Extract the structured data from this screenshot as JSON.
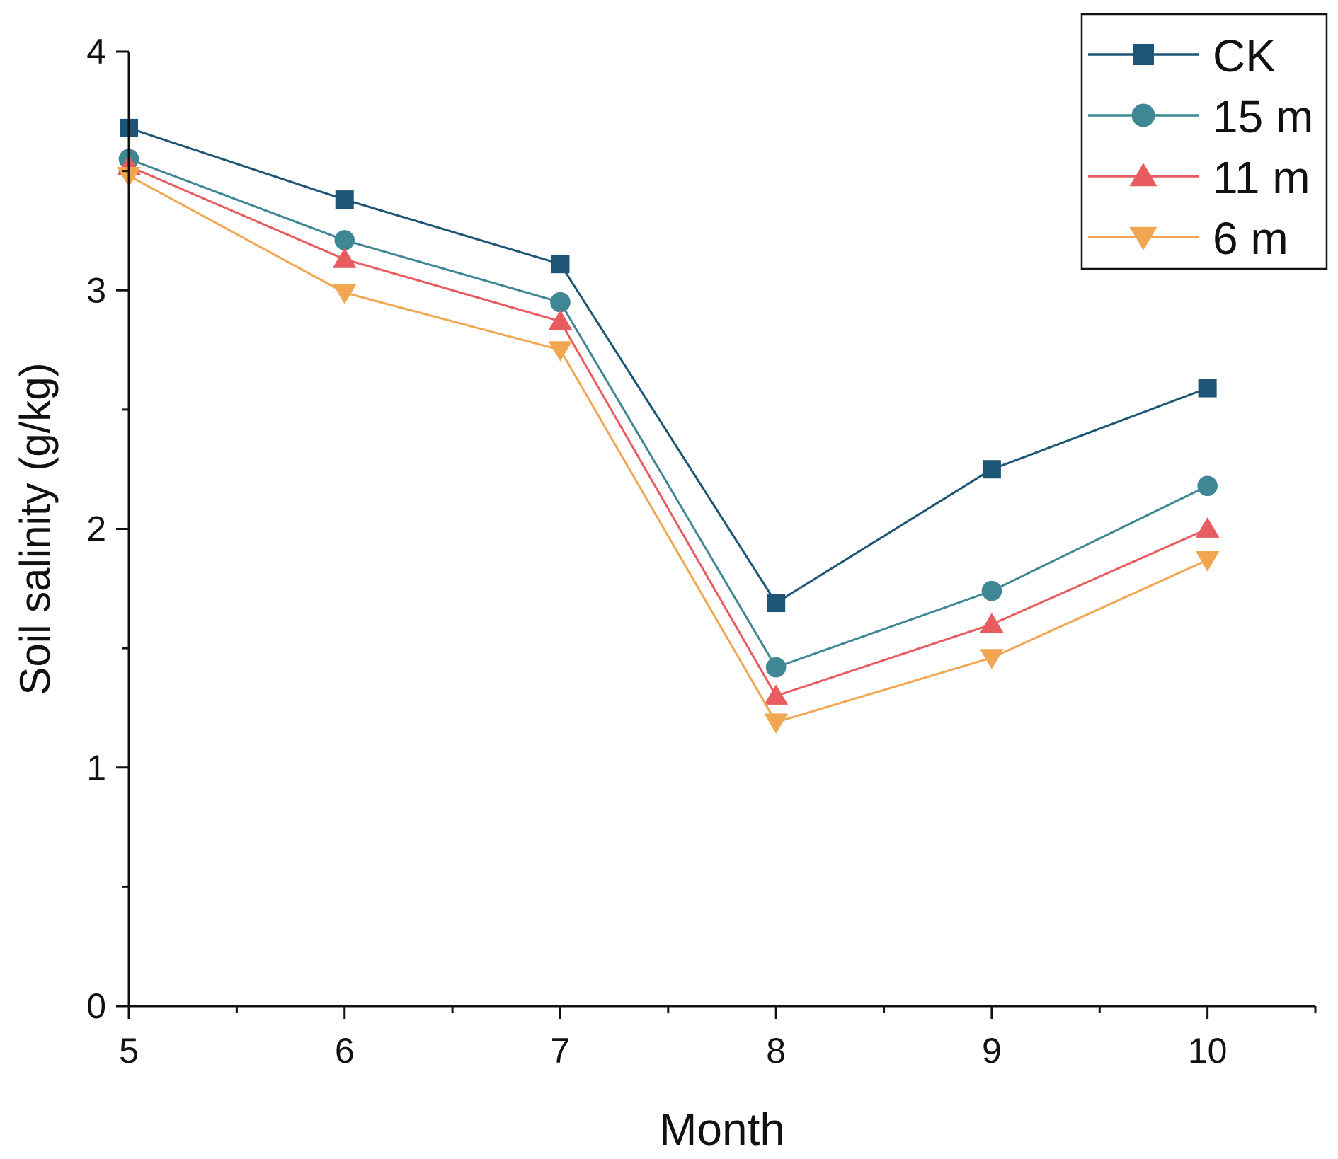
{
  "chart_data": {
    "type": "line",
    "title": "",
    "xlabel": "Month",
    "ylabel": "Soil salinity (g/kg)",
    "x": [
      5,
      6,
      7,
      8,
      9,
      10
    ],
    "xlim": [
      5,
      10.5
    ],
    "ylim": [
      0,
      4
    ],
    "xticks": [
      "5",
      "6",
      "7",
      "8",
      "9",
      "10"
    ],
    "yticks": [
      "0",
      "1",
      "2",
      "3",
      "4"
    ],
    "grid": false,
    "legend_position": "top-right",
    "series": [
      {
        "name": "CK",
        "marker": "square",
        "color": "#1c5575",
        "values": [
          3.68,
          3.38,
          3.11,
          1.69,
          2.25,
          2.59
        ]
      },
      {
        "name": "15 m",
        "marker": "circle",
        "color": "#3f8795",
        "values": [
          3.55,
          3.21,
          2.95,
          1.42,
          1.74,
          2.18
        ]
      },
      {
        "name": "11 m",
        "marker": "triangle-up",
        "color": "#e85b5e",
        "values": [
          3.52,
          3.13,
          2.87,
          1.3,
          1.6,
          2.0
        ]
      },
      {
        "name": "6 m",
        "marker": "triangle-down",
        "color": "#f1a752",
        "values": [
          3.48,
          2.99,
          2.75,
          1.19,
          1.46,
          1.87
        ]
      }
    ]
  }
}
